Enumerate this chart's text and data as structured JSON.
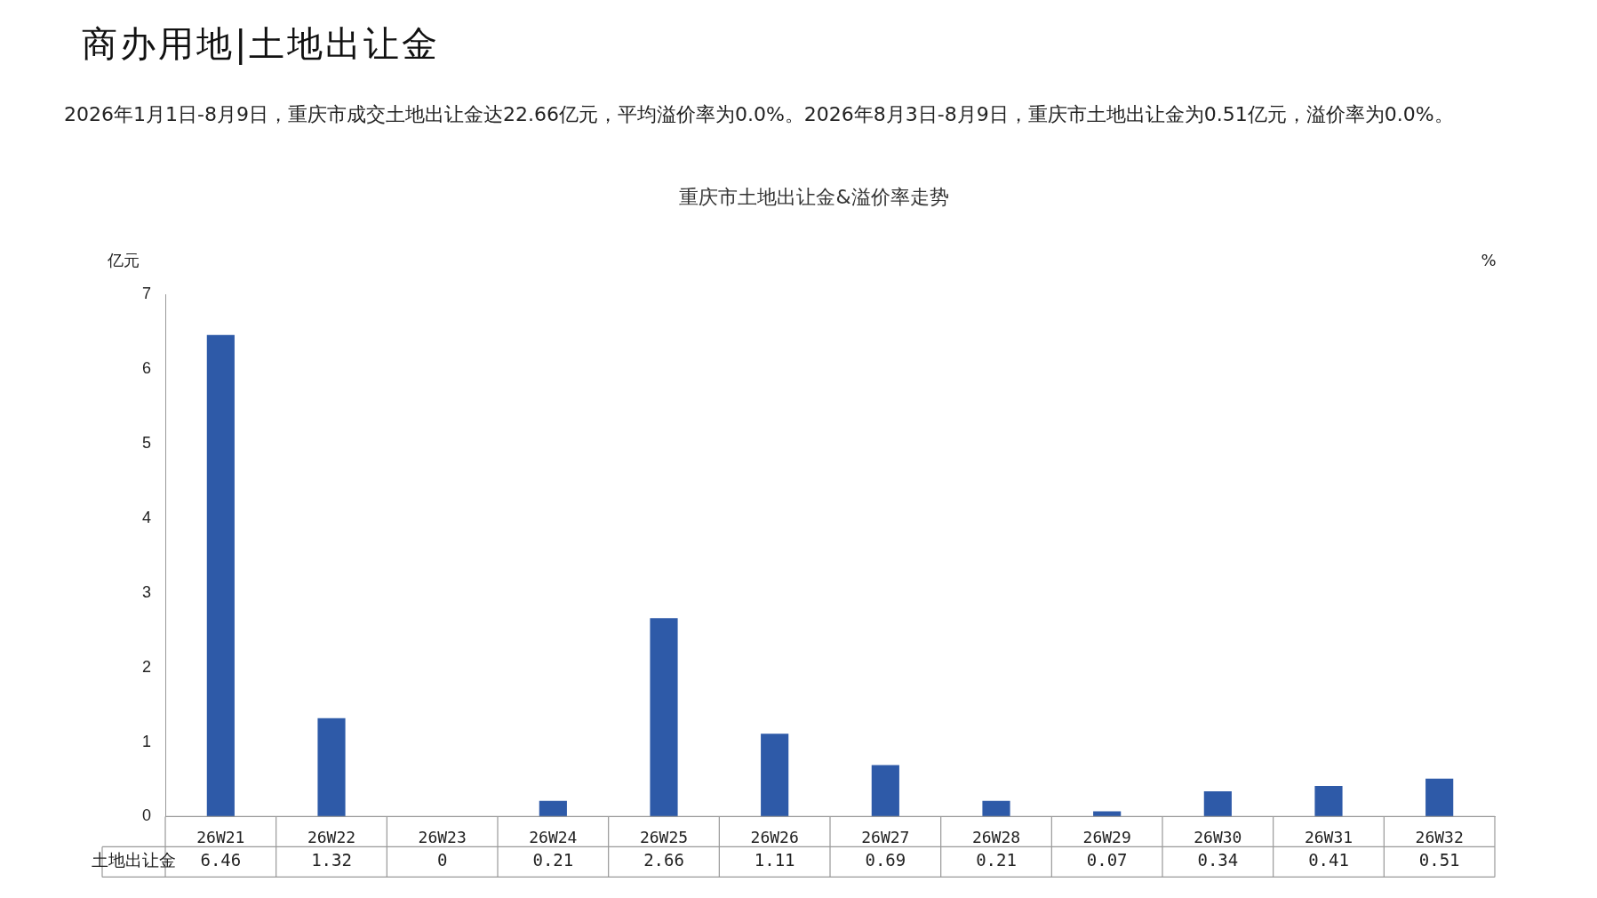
{
  "chart_data": {
    "type": "bar",
    "title": "重庆市土地出让金&溢价率走势",
    "annotations": [
      "商办用地|土地出让金",
      "2026年1月1日-8月9日，重庆市成交土地出让金达22.66亿元，平均溢价率为0.0%。2026年8月3日-8月9日，重庆市土地出让金为0.51亿元，溢价率为0.0%。"
    ],
    "ylabel": "亿元",
    "y2label": "%",
    "categories": [
      "26W21",
      "26W22",
      "26W23",
      "26W24",
      "26W25",
      "26W26",
      "26W27",
      "26W28",
      "26W29",
      "26W30",
      "26W31",
      "26W32"
    ],
    "series": [
      {
        "name": "土地出让金",
        "color": "#2e5aa8",
        "values": [
          6.46,
          1.32,
          0,
          0.21,
          2.66,
          1.11,
          0.69,
          0.21,
          0.07,
          0.34,
          0.41,
          0.51
        ]
      }
    ],
    "ylim": [
      0,
      7
    ],
    "yticks": [
      0,
      1,
      2,
      3,
      4,
      5,
      6,
      7
    ],
    "grid": false,
    "legend": false,
    "data_labels": true
  }
}
